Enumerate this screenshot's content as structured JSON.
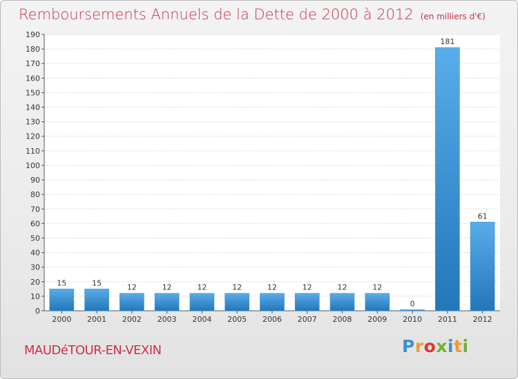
{
  "title": "Remboursements Annuels de la Dette de 2000 à 2012",
  "subtitle": "(en milliers d'€)",
  "commune": "MAUDéTOUR-EN-VEXIN",
  "logo": {
    "text": "Proxiti",
    "letter_colors": [
      "#3d8fd6",
      "#f29a2e",
      "#e2342f",
      "#70b32f",
      "#3d8fd6",
      "#f29a2e",
      "#70b32f"
    ]
  },
  "colors": {
    "title": "#c8314b",
    "bar_light": "#5aacea",
    "bar_dark": "#2277b9"
  },
  "chart_data": {
    "type": "bar",
    "categories": [
      "2000",
      "2001",
      "2002",
      "2003",
      "2004",
      "2005",
      "2006",
      "2007",
      "2008",
      "2009",
      "2010",
      "2011",
      "2012"
    ],
    "values": [
      15,
      15,
      12,
      12,
      12,
      12,
      12,
      12,
      12,
      12,
      0,
      181,
      61
    ],
    "ylim": [
      0,
      190
    ],
    "ytick_step": 10,
    "grid": true,
    "xlabel": "",
    "ylabel": ""
  }
}
